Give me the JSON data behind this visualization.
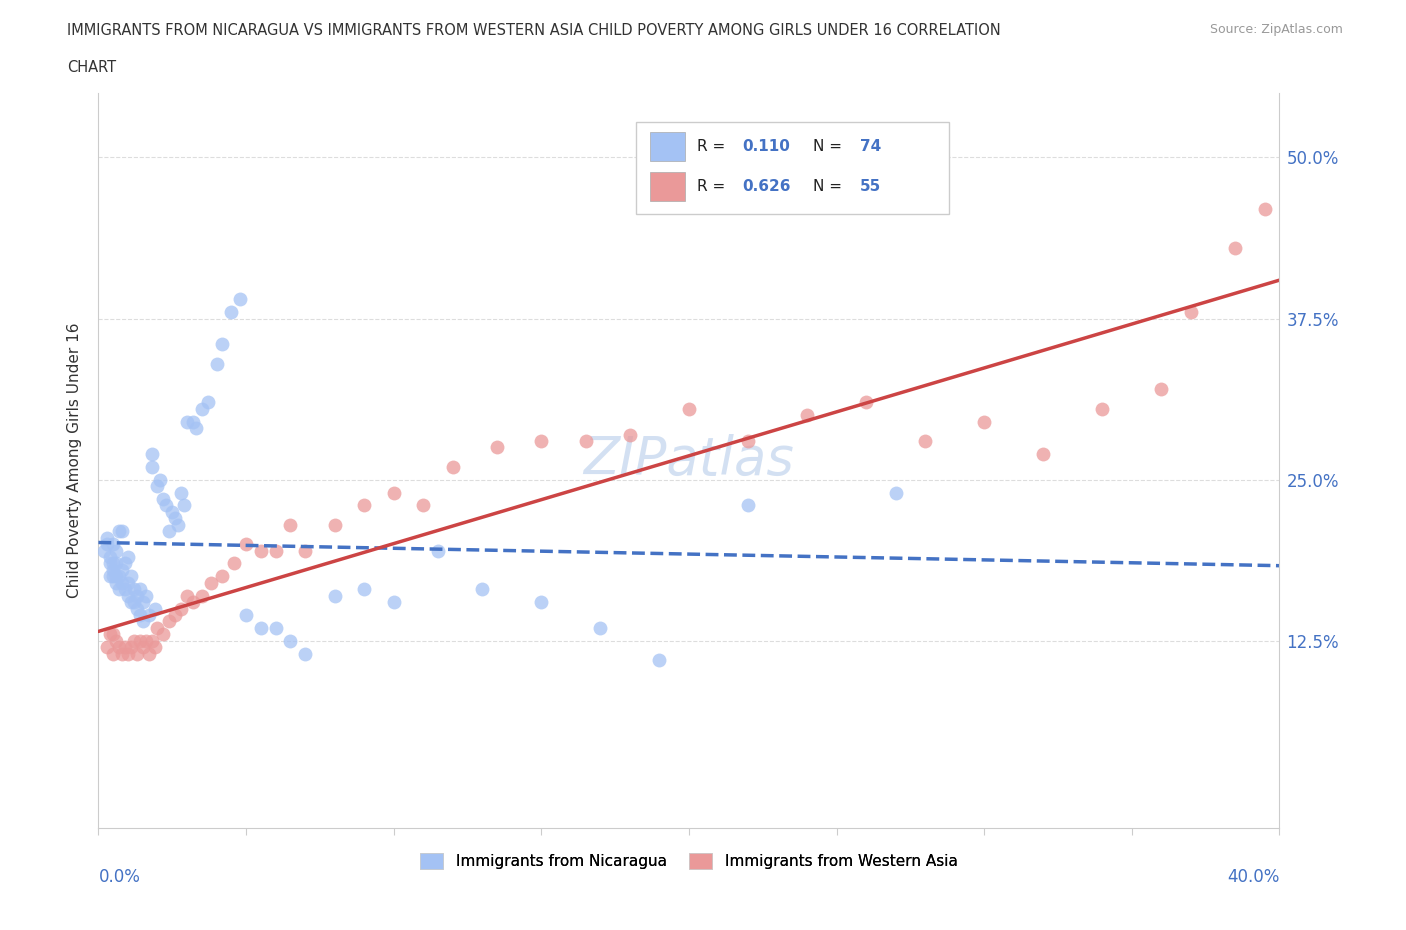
{
  "title_line1": "IMMIGRANTS FROM NICARAGUA VS IMMIGRANTS FROM WESTERN ASIA CHILD POVERTY AMONG GIRLS UNDER 16 CORRELATION",
  "title_line2": "CHART",
  "source": "Source: ZipAtlas.com",
  "ylabel": "Child Poverty Among Girls Under 16",
  "xlim": [
    0.0,
    0.4
  ],
  "ylim": [
    -0.02,
    0.55
  ],
  "R_nicaragua": 0.11,
  "N_nicaragua": 74,
  "R_western_asia": 0.626,
  "N_western_asia": 55,
  "color_nicaragua": "#a4c2f4",
  "color_western_asia": "#ea9999",
  "trend_color_nicaragua": "#4472c4",
  "trend_color_western_asia": "#cc4444",
  "watermark": "ZIPatlas",
  "nic_x": [
    0.002,
    0.003,
    0.003,
    0.004,
    0.004,
    0.004,
    0.005,
    0.005,
    0.005,
    0.005,
    0.006,
    0.006,
    0.006,
    0.006,
    0.007,
    0.007,
    0.007,
    0.008,
    0.008,
    0.008,
    0.009,
    0.009,
    0.01,
    0.01,
    0.01,
    0.011,
    0.011,
    0.012,
    0.012,
    0.013,
    0.013,
    0.014,
    0.014,
    0.015,
    0.015,
    0.016,
    0.017,
    0.018,
    0.018,
    0.019,
    0.02,
    0.021,
    0.022,
    0.023,
    0.024,
    0.025,
    0.026,
    0.027,
    0.028,
    0.029,
    0.03,
    0.032,
    0.033,
    0.035,
    0.037,
    0.04,
    0.042,
    0.045,
    0.048,
    0.05,
    0.055,
    0.06,
    0.065,
    0.07,
    0.08,
    0.09,
    0.1,
    0.115,
    0.13,
    0.15,
    0.17,
    0.19,
    0.22,
    0.27
  ],
  "nic_y": [
    0.195,
    0.2,
    0.205,
    0.175,
    0.185,
    0.19,
    0.175,
    0.18,
    0.185,
    0.2,
    0.17,
    0.175,
    0.185,
    0.195,
    0.165,
    0.175,
    0.21,
    0.17,
    0.18,
    0.21,
    0.165,
    0.185,
    0.16,
    0.17,
    0.19,
    0.155,
    0.175,
    0.155,
    0.165,
    0.15,
    0.16,
    0.145,
    0.165,
    0.14,
    0.155,
    0.16,
    0.145,
    0.26,
    0.27,
    0.15,
    0.245,
    0.25,
    0.235,
    0.23,
    0.21,
    0.225,
    0.22,
    0.215,
    0.24,
    0.23,
    0.295,
    0.295,
    0.29,
    0.305,
    0.31,
    0.34,
    0.355,
    0.38,
    0.39,
    0.145,
    0.135,
    0.135,
    0.125,
    0.115,
    0.16,
    0.165,
    0.155,
    0.195,
    0.165,
    0.155,
    0.135,
    0.11,
    0.23,
    0.24
  ],
  "wa_x": [
    0.003,
    0.004,
    0.005,
    0.005,
    0.006,
    0.007,
    0.008,
    0.009,
    0.01,
    0.011,
    0.012,
    0.013,
    0.014,
    0.015,
    0.016,
    0.017,
    0.018,
    0.019,
    0.02,
    0.022,
    0.024,
    0.026,
    0.028,
    0.03,
    0.032,
    0.035,
    0.038,
    0.042,
    0.046,
    0.05,
    0.055,
    0.06,
    0.065,
    0.07,
    0.08,
    0.09,
    0.1,
    0.11,
    0.12,
    0.135,
    0.15,
    0.165,
    0.18,
    0.2,
    0.22,
    0.24,
    0.26,
    0.28,
    0.3,
    0.32,
    0.34,
    0.36,
    0.37,
    0.385,
    0.395
  ],
  "wa_y": [
    0.12,
    0.13,
    0.115,
    0.13,
    0.125,
    0.12,
    0.115,
    0.12,
    0.115,
    0.12,
    0.125,
    0.115,
    0.125,
    0.12,
    0.125,
    0.115,
    0.125,
    0.12,
    0.135,
    0.13,
    0.14,
    0.145,
    0.15,
    0.16,
    0.155,
    0.16,
    0.17,
    0.175,
    0.185,
    0.2,
    0.195,
    0.195,
    0.215,
    0.195,
    0.215,
    0.23,
    0.24,
    0.23,
    0.26,
    0.275,
    0.28,
    0.28,
    0.285,
    0.305,
    0.28,
    0.3,
    0.31,
    0.28,
    0.295,
    0.27,
    0.305,
    0.32,
    0.38,
    0.43,
    0.46
  ]
}
